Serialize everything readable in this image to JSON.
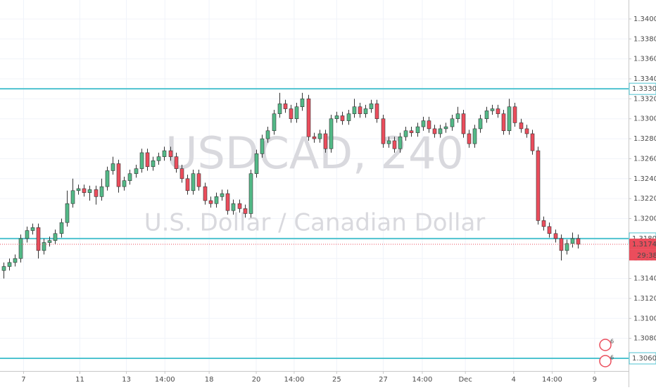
{
  "chart_data": {
    "type": "candlestick",
    "watermark": "USDCAD, 240",
    "subtitle": "U.S. Dollar / Canadian Dollar",
    "ylim": [
      1.30473,
      1.3419
    ],
    "yticks": [
      {
        "value": 1.306,
        "label": "1.30600"
      },
      {
        "value": 1.308,
        "label": "1.30800"
      },
      {
        "value": 1.31,
        "label": "1.31000"
      },
      {
        "value": 1.312,
        "label": "1.31200"
      },
      {
        "value": 1.314,
        "label": "1.31400"
      },
      {
        "value": 1.316,
        "label": "1.31600"
      },
      {
        "value": 1.318,
        "label": "1.31800"
      },
      {
        "value": 1.32,
        "label": "1.32000"
      },
      {
        "value": 1.322,
        "label": "1.32200"
      },
      {
        "value": 1.324,
        "label": "1.32400"
      },
      {
        "value": 1.326,
        "label": "1.32600"
      },
      {
        "value": 1.328,
        "label": "1.32800"
      },
      {
        "value": 1.33,
        "label": "1.33000"
      },
      {
        "value": 1.332,
        "label": "1.33200"
      },
      {
        "value": 1.334,
        "label": "1.33400"
      },
      {
        "value": 1.336,
        "label": "1.33600"
      },
      {
        "value": 1.338,
        "label": "1.33800"
      },
      {
        "value": 1.34,
        "label": "1.34000"
      }
    ],
    "xlim": [
      -0.6,
      108.8
    ],
    "xticks": [
      {
        "value": 3.5,
        "label": "7"
      },
      {
        "value": 13.3,
        "label": "11"
      },
      {
        "value": 21.4,
        "label": "13"
      },
      {
        "value": 28.1,
        "label": "14:00"
      },
      {
        "value": 35.8,
        "label": "18"
      },
      {
        "value": 44,
        "label": "20"
      },
      {
        "value": 50.6,
        "label": "14:00"
      },
      {
        "value": 58,
        "label": "25"
      },
      {
        "value": 66.1,
        "label": "27"
      },
      {
        "value": 72.9,
        "label": "14:00"
      },
      {
        "value": 80.4,
        "label": "Dec"
      },
      {
        "value": 88.8,
        "label": "4"
      },
      {
        "value": 95.5,
        "label": "14:00"
      },
      {
        "value": 102.9,
        "label": "9"
      }
    ],
    "grid": true,
    "up_color": "#53b987",
    "down_color": "#eb4d5c",
    "open": [
      1.3148,
      1.3152,
      1.3156,
      1.316,
      1.318,
      1.3188,
      1.3191,
      1.3168,
      1.3176,
      1.3178,
      1.3185,
      1.3196,
      1.3215,
      1.3228,
      1.323,
      1.3226,
      1.3229,
      1.3222,
      1.3232,
      1.3248,
      1.3255,
      1.3232,
      1.3238,
      1.3245,
      1.325,
      1.3266,
      1.3252,
      1.3258,
      1.3262,
      1.3268,
      1.3262,
      1.325,
      1.324,
      1.3228,
      1.3245,
      1.3232,
      1.3218,
      1.3215,
      1.3222,
      1.3225,
      1.3208,
      1.3215,
      1.321,
      1.3205,
      1.3245,
      1.3265,
      1.328,
      1.3288,
      1.3305,
      1.3315,
      1.331,
      1.33,
      1.3312,
      1.332,
      1.3282,
      1.328,
      1.3285,
      1.327,
      1.33,
      1.3303,
      1.3298,
      1.3305,
      1.3312,
      1.3305,
      1.331,
      1.3315,
      1.33,
      1.3275,
      1.3278,
      1.327,
      1.3282,
      1.3288,
      1.3286,
      1.3292,
      1.3298,
      1.329,
      1.3285,
      1.329,
      1.3292,
      1.33,
      1.3305,
      1.3285,
      1.3275,
      1.329,
      1.33,
      1.3308,
      1.331,
      1.3305,
      1.3288,
      1.3312,
      1.3296,
      1.329,
      1.3285,
      1.3268,
      1.3198,
      1.3192,
      1.3185,
      1.318,
      1.3168,
      1.3175,
      1.318
    ],
    "high": [
      1.3156,
      1.316,
      1.3164,
      1.3184,
      1.3192,
      1.3195,
      1.3195,
      1.318,
      1.3182,
      1.3189,
      1.32,
      1.3228,
      1.324,
      1.3234,
      1.3234,
      1.3233,
      1.3233,
      1.324,
      1.3252,
      1.3262,
      1.3259,
      1.3242,
      1.3249,
      1.3254,
      1.327,
      1.327,
      1.3262,
      1.3266,
      1.3272,
      1.3272,
      1.3266,
      1.3254,
      1.3244,
      1.3249,
      1.3249,
      1.3236,
      1.3222,
      1.3226,
      1.3229,
      1.3229,
      1.3219,
      1.3219,
      1.3214,
      1.3249,
      1.3269,
      1.3284,
      1.3292,
      1.3309,
      1.3326,
      1.3319,
      1.3314,
      1.3316,
      1.3326,
      1.3324,
      1.3286,
      1.3289,
      1.3289,
      1.3304,
      1.3307,
      1.3307,
      1.3309,
      1.332,
      1.3316,
      1.3314,
      1.3319,
      1.3319,
      1.3304,
      1.3282,
      1.3282,
      1.3286,
      1.3292,
      1.3292,
      1.3296,
      1.3302,
      1.3302,
      1.3294,
      1.3294,
      1.3296,
      1.3304,
      1.3312,
      1.3309,
      1.3289,
      1.3294,
      1.3304,
      1.3312,
      1.3314,
      1.3314,
      1.3309,
      1.332,
      1.3316,
      1.33,
      1.3294,
      1.3289,
      1.3272,
      1.3202,
      1.3196,
      1.3189,
      1.3184,
      1.3179,
      1.3186,
      1.3184
    ],
    "low": [
      1.314,
      1.3148,
      1.3152,
      1.3156,
      1.3176,
      1.3184,
      1.316,
      1.3164,
      1.3172,
      1.3174,
      1.3181,
      1.3192,
      1.3211,
      1.3224,
      1.3222,
      1.3218,
      1.3214,
      1.3218,
      1.3228,
      1.3244,
      1.3226,
      1.3228,
      1.3234,
      1.3241,
      1.3246,
      1.3248,
      1.3248,
      1.3254,
      1.3258,
      1.3258,
      1.3246,
      1.3236,
      1.3224,
      1.3224,
      1.3228,
      1.3214,
      1.3211,
      1.3211,
      1.3218,
      1.3204,
      1.3204,
      1.3206,
      1.3201,
      1.3201,
      1.3241,
      1.3261,
      1.3276,
      1.3284,
      1.3301,
      1.3306,
      1.3296,
      1.3296,
      1.3308,
      1.3278,
      1.3276,
      1.3276,
      1.3266,
      1.3266,
      1.3296,
      1.3294,
      1.3294,
      1.3301,
      1.3301,
      1.3301,
      1.3306,
      1.3296,
      1.3271,
      1.3271,
      1.3266,
      1.3266,
      1.3278,
      1.3282,
      1.3282,
      1.3288,
      1.3286,
      1.3281,
      1.3281,
      1.3286,
      1.3288,
      1.3296,
      1.3281,
      1.3271,
      1.3271,
      1.3286,
      1.3296,
      1.3304,
      1.3301,
      1.3284,
      1.3284,
      1.3292,
      1.3286,
      1.3281,
      1.3264,
      1.3194,
      1.3188,
      1.3181,
      1.3176,
      1.3158,
      1.3164,
      1.3171,
      1.317
    ],
    "close": [
      1.3152,
      1.3156,
      1.316,
      1.318,
      1.3188,
      1.3191,
      1.3168,
      1.3176,
      1.3178,
      1.3185,
      1.3196,
      1.3215,
      1.3228,
      1.323,
      1.3226,
      1.3229,
      1.3222,
      1.3232,
      1.3248,
      1.3255,
      1.3232,
      1.3238,
      1.3245,
      1.325,
      1.3266,
      1.3252,
      1.3258,
      1.3262,
      1.3268,
      1.3262,
      1.325,
      1.324,
      1.3228,
      1.3245,
      1.3232,
      1.3218,
      1.3215,
      1.3222,
      1.3225,
      1.3208,
      1.3215,
      1.321,
      1.3205,
      1.3245,
      1.3265,
      1.328,
      1.3288,
      1.3305,
      1.3315,
      1.331,
      1.33,
      1.3312,
      1.332,
      1.3282,
      1.328,
      1.3285,
      1.327,
      1.33,
      1.3303,
      1.3298,
      1.3305,
      1.3312,
      1.3305,
      1.331,
      1.3315,
      1.33,
      1.3275,
      1.3278,
      1.327,
      1.3282,
      1.3288,
      1.3286,
      1.3292,
      1.3298,
      1.329,
      1.3285,
      1.329,
      1.3292,
      1.33,
      1.3305,
      1.3285,
      1.3275,
      1.329,
      1.33,
      1.3308,
      1.331,
      1.3305,
      1.3288,
      1.3312,
      1.3296,
      1.329,
      1.3285,
      1.3268,
      1.3198,
      1.3192,
      1.3185,
      1.318,
      1.3168,
      1.3175,
      1.318,
      1.31743
    ],
    "hlines": [
      {
        "value": 1.333,
        "label": "1.33300"
      },
      {
        "value": 1.318,
        "label": "1.31800"
      },
      {
        "value": 1.306,
        "label": "1.30600"
      }
    ],
    "hline_color": "#4fc3d0",
    "last_price": {
      "value": 1.31743,
      "label": "1.31743"
    },
    "countdown": "29:38",
    "event_markers": [
      "6",
      "6"
    ]
  }
}
